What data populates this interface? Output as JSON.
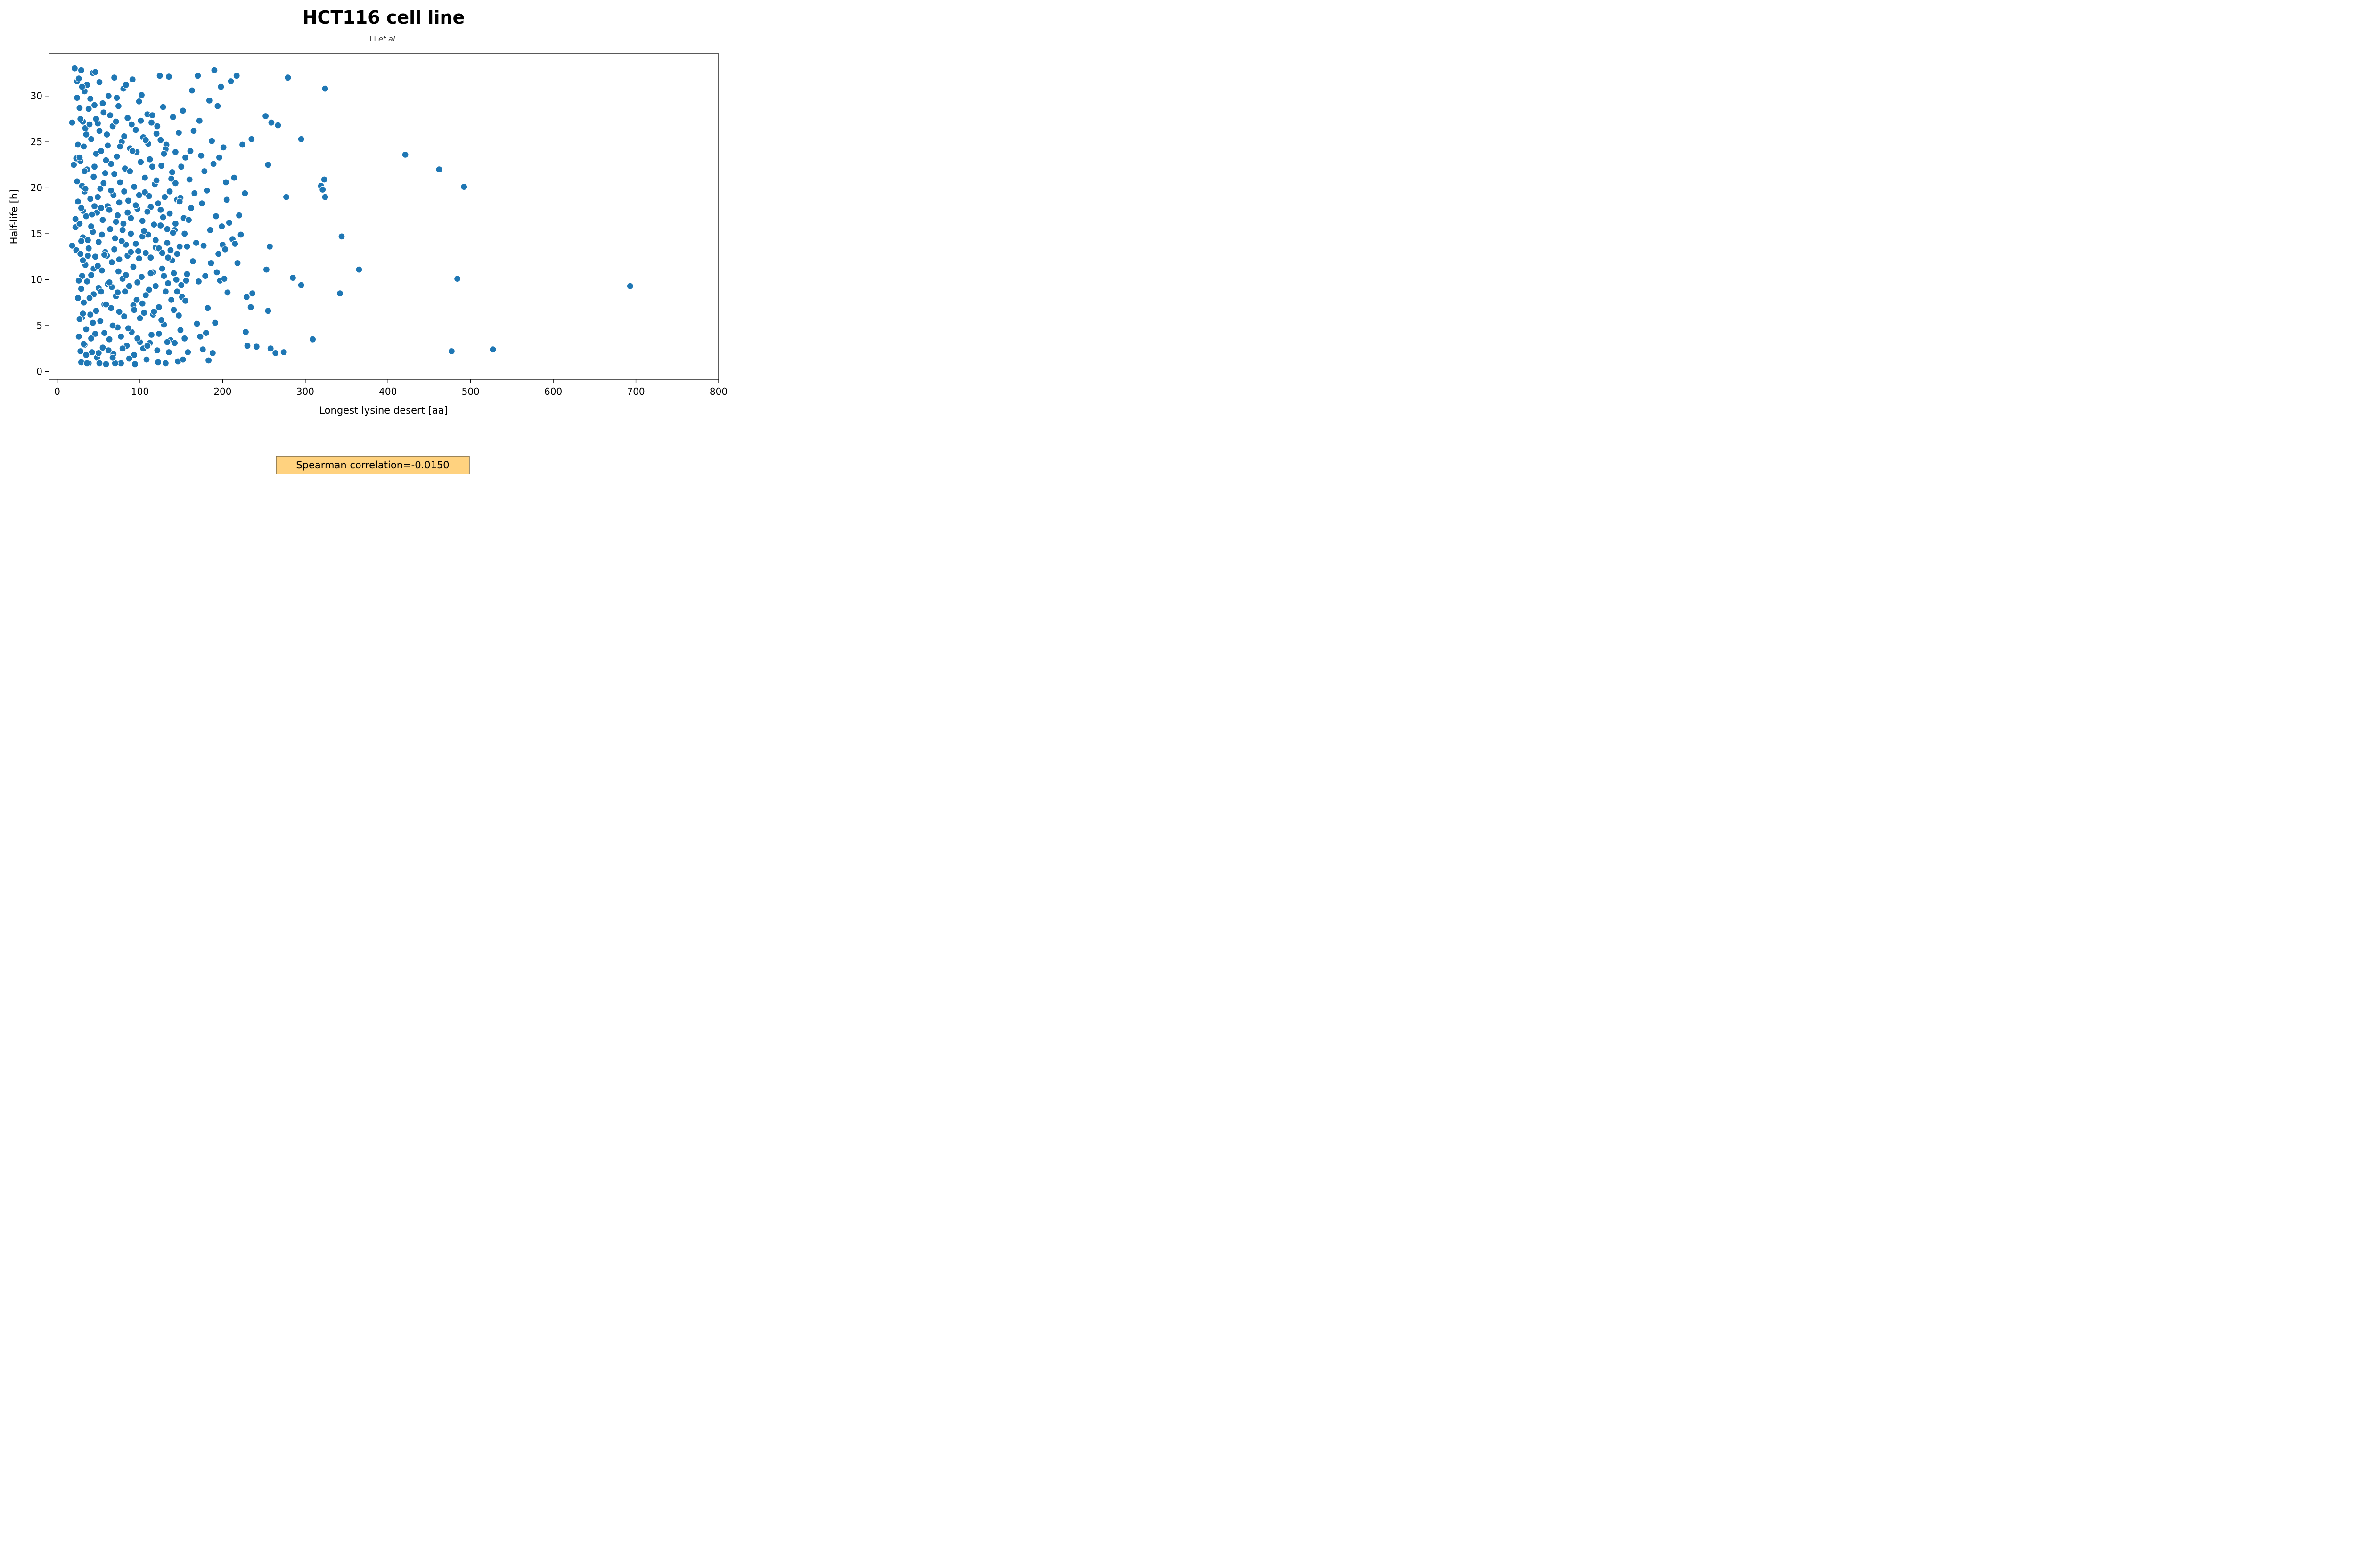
{
  "chart_data": {
    "type": "scatter",
    "title": "HCT116 cell line",
    "subtitle_prefix": "Li",
    "subtitle_italic": "et al.",
    "xlabel": "Longest lysine desert [aa]",
    "ylabel": "Half-life [h]",
    "xlim": [
      -10,
      800
    ],
    "ylim": [
      -0.85,
      34.6
    ],
    "xticks": [
      0,
      100,
      200,
      300,
      400,
      500,
      600,
      700,
      800
    ],
    "yticks": [
      0,
      5,
      10,
      15,
      20,
      25,
      30
    ],
    "grid": false,
    "legend": "none",
    "marker_color": "#1f77b4",
    "annotation": "Spearman correlation=-0.0150",
    "annotation_bg": "#ffd27f",
    "points": [
      [
        18,
        13.7
      ],
      [
        18,
        27.1
      ],
      [
        20,
        22.5
      ],
      [
        21,
        33.0
      ],
      [
        22,
        15.7
      ],
      [
        23,
        13.2
      ],
      [
        23,
        23.2
      ],
      [
        24,
        31.6
      ],
      [
        24,
        29.8
      ],
      [
        25,
        8.0
      ],
      [
        25,
        24.7
      ],
      [
        25,
        18.5
      ],
      [
        26,
        31.9
      ],
      [
        26,
        3.8
      ],
      [
        27,
        16.1
      ],
      [
        27,
        28.7
      ],
      [
        28,
        12.8
      ],
      [
        28,
        22.9
      ],
      [
        28,
        2.2
      ],
      [
        29,
        9.0
      ],
      [
        29,
        1.0
      ],
      [
        29,
        32.8
      ],
      [
        30,
        20.2
      ],
      [
        30,
        10.4
      ],
      [
        30,
        5.9
      ],
      [
        31,
        17.5
      ],
      [
        31,
        27.2
      ],
      [
        31,
        14.6
      ],
      [
        32,
        24.5
      ],
      [
        32,
        7.5
      ],
      [
        33,
        30.5
      ],
      [
        33,
        19.6
      ],
      [
        33,
        2.9
      ],
      [
        34,
        11.6
      ],
      [
        34,
        26.5
      ],
      [
        35,
        16.9
      ],
      [
        35,
        4.6
      ],
      [
        36,
        22.0
      ],
      [
        36,
        9.8
      ],
      [
        36,
        31.2
      ],
      [
        38,
        13.4
      ],
      [
        38,
        0.9
      ],
      [
        38,
        28.6
      ],
      [
        40,
        18.8
      ],
      [
        40,
        6.2
      ],
      [
        41,
        25.3
      ],
      [
        41,
        10.5
      ],
      [
        42,
        2.1
      ],
      [
        43,
        15.2
      ],
      [
        43,
        32.5
      ],
      [
        44,
        21.2
      ],
      [
        44,
        8.4
      ],
      [
        45,
        29.0
      ],
      [
        46,
        12.5
      ],
      [
        46,
        4.1
      ],
      [
        47,
        23.7
      ],
      [
        48,
        17.3
      ],
      [
        48,
        1.5
      ],
      [
        49,
        27.0
      ],
      [
        50,
        9.1
      ],
      [
        50,
        14.1
      ],
      [
        51,
        31.5
      ],
      [
        52,
        19.9
      ],
      [
        52,
        5.5
      ],
      [
        53,
        24.0
      ],
      [
        54,
        11.0
      ],
      [
        55,
        16.5
      ],
      [
        55,
        2.6
      ],
      [
        56,
        28.2
      ],
      [
        57,
        7.3
      ],
      [
        58,
        21.6
      ],
      [
        58,
        13.0
      ],
      [
        59,
        0.8
      ],
      [
        60,
        25.8
      ],
      [
        61,
        18.0
      ],
      [
        61,
        9.5
      ],
      [
        62,
        30.0
      ],
      [
        63,
        3.5
      ],
      [
        64,
        15.5
      ],
      [
        65,
        22.6
      ],
      [
        65,
        6.9
      ],
      [
        66,
        11.9
      ],
      [
        67,
        26.7
      ],
      [
        68,
        19.2
      ],
      [
        68,
        1.9
      ],
      [
        69,
        32.0
      ],
      [
        70,
        14.5
      ],
      [
        71,
        8.2
      ],
      [
        72,
        23.4
      ],
      [
        73,
        17.0
      ],
      [
        73,
        4.8
      ],
      [
        74,
        28.9
      ],
      [
        75,
        12.2
      ],
      [
        76,
        20.6
      ],
      [
        77,
        0.9
      ],
      [
        78,
        25.0
      ],
      [
        79,
        10.1
      ],
      [
        80,
        16.1
      ],
      [
        80,
        30.8
      ],
      [
        81,
        6.0
      ],
      [
        82,
        22.1
      ],
      [
        83,
        13.8
      ],
      [
        84,
        2.8
      ],
      [
        85,
        27.6
      ],
      [
        86,
        18.6
      ],
      [
        87,
        9.3
      ],
      [
        88,
        24.3
      ],
      [
        89,
        15.0
      ],
      [
        90,
        4.3
      ],
      [
        91,
        31.8
      ],
      [
        92,
        11.4
      ],
      [
        93,
        20.1
      ],
      [
        94,
        0.8
      ],
      [
        95,
        26.3
      ],
      [
        96,
        7.8
      ],
      [
        97,
        17.7
      ],
      [
        98,
        13.1
      ],
      [
        99,
        29.4
      ],
      [
        100,
        3.2
      ],
      [
        101,
        22.8
      ],
      [
        102,
        10.3
      ],
      [
        103,
        16.4
      ],
      [
        104,
        25.5
      ],
      [
        105,
        6.4
      ],
      [
        106,
        19.5
      ],
      [
        107,
        12.9
      ],
      [
        108,
        1.3
      ],
      [
        109,
        28.0
      ],
      [
        110,
        14.9
      ],
      [
        111,
        8.9
      ],
      [
        112,
        23.1
      ],
      [
        113,
        17.9
      ],
      [
        114,
        4.0
      ],
      [
        115,
        27.9
      ],
      [
        116,
        10.8
      ],
      [
        118,
        20.4
      ],
      [
        119,
        13.5
      ],
      [
        120,
        25.9
      ],
      [
        121,
        2.3
      ],
      [
        122,
        18.3
      ],
      [
        123,
        7.0
      ],
      [
        124,
        32.2
      ],
      [
        125,
        15.9
      ],
      [
        126,
        22.4
      ],
      [
        127,
        11.2
      ],
      [
        128,
        28.8
      ],
      [
        129,
        5.1
      ],
      [
        130,
        19.0
      ],
      [
        131,
        0.9
      ],
      [
        132,
        24.7
      ],
      [
        133,
        14.0
      ],
      [
        134,
        9.6
      ],
      [
        135,
        32.1
      ],
      [
        136,
        17.2
      ],
      [
        137,
        3.4
      ],
      [
        138,
        21.0
      ],
      [
        139,
        12.1
      ],
      [
        140,
        27.7
      ],
      [
        141,
        6.7
      ],
      [
        142,
        15.4
      ],
      [
        143,
        23.9
      ],
      [
        144,
        10.0
      ],
      [
        145,
        18.7
      ],
      [
        146,
        1.1
      ],
      [
        147,
        26.0
      ],
      [
        148,
        13.6
      ],
      [
        149,
        4.5
      ],
      [
        150,
        22.3
      ],
      [
        151,
        8.1
      ],
      [
        152,
        28.4
      ],
      [
        153,
        16.7
      ],
      [
        154,
        3.6
      ],
      [
        155,
        23.3
      ],
      [
        156,
        9.9
      ],
      [
        157,
        13.6
      ],
      [
        158,
        2.1
      ],
      [
        159,
        16.5
      ],
      [
        160,
        20.9
      ],
      [
        161,
        24.0
      ],
      [
        162,
        17.8
      ],
      [
        163,
        30.6
      ],
      [
        164,
        12.0
      ],
      [
        165,
        26.2
      ],
      [
        166,
        19.4
      ],
      [
        168,
        14.0
      ],
      [
        169,
        5.2
      ],
      [
        170,
        32.2
      ],
      [
        171,
        9.8
      ],
      [
        172,
        27.3
      ],
      [
        173,
        3.8
      ],
      [
        174,
        23.5
      ],
      [
        175,
        18.3
      ],
      [
        176,
        2.4
      ],
      [
        177,
        13.7
      ],
      [
        178,
        21.8
      ],
      [
        179,
        10.4
      ],
      [
        180,
        4.2
      ],
      [
        181,
        19.7
      ],
      [
        182,
        6.9
      ],
      [
        183,
        1.2
      ],
      [
        184,
        29.5
      ],
      [
        185,
        15.4
      ],
      [
        186,
        11.8
      ],
      [
        187,
        25.1
      ],
      [
        188,
        2.0
      ],
      [
        189,
        22.6
      ],
      [
        190,
        32.8
      ],
      [
        191,
        5.3
      ],
      [
        192,
        16.9
      ],
      [
        193,
        10.8
      ],
      [
        194,
        28.9
      ],
      [
        195,
        12.8
      ],
      [
        196,
        23.3
      ],
      [
        197,
        9.9
      ],
      [
        198,
        31.0
      ],
      [
        199,
        15.8
      ],
      [
        200,
        13.8
      ],
      [
        201,
        24.4
      ],
      [
        202,
        10.1
      ],
      [
        203,
        13.3
      ],
      [
        204,
        20.6
      ],
      [
        205,
        18.7
      ],
      [
        206,
        8.6
      ],
      [
        208,
        16.2
      ],
      [
        210,
        31.6
      ],
      [
        212,
        14.4
      ],
      [
        214,
        21.1
      ],
      [
        215,
        13.9
      ],
      [
        217,
        32.2
      ],
      [
        218,
        11.8
      ],
      [
        220,
        17.0
      ],
      [
        222,
        14.9
      ],
      [
        224,
        24.7
      ],
      [
        227,
        19.4
      ],
      [
        228,
        4.3
      ],
      [
        229,
        8.1
      ],
      [
        230,
        2.8
      ],
      [
        234,
        7.0
      ],
      [
        235,
        25.3
      ],
      [
        236,
        8.5
      ],
      [
        241,
        2.7
      ],
      [
        252,
        27.8
      ],
      [
        253,
        11.1
      ],
      [
        255,
        6.6
      ],
      [
        255,
        22.5
      ],
      [
        257,
        13.6
      ],
      [
        258,
        2.5
      ],
      [
        259,
        27.1
      ],
      [
        264,
        2.0
      ],
      [
        267,
        26.8
      ],
      [
        274,
        2.1
      ],
      [
        277,
        19.0
      ],
      [
        279,
        32.0
      ],
      [
        285,
        10.2
      ],
      [
        295,
        9.4
      ],
      [
        295,
        25.3
      ],
      [
        309,
        3.5
      ],
      [
        319,
        20.2
      ],
      [
        321,
        19.8
      ],
      [
        323,
        20.9
      ],
      [
        324,
        30.8
      ],
      [
        324,
        19.0
      ],
      [
        342,
        8.5
      ],
      [
        344,
        14.7
      ],
      [
        365,
        11.1
      ],
      [
        421,
        23.6
      ],
      [
        462,
        22.0
      ],
      [
        477,
        2.2
      ],
      [
        484,
        10.1
      ],
      [
        492,
        20.1
      ],
      [
        527,
        2.4
      ],
      [
        693,
        9.3
      ],
      [
        22,
        16.6
      ],
      [
        24,
        20.7
      ],
      [
        26,
        9.9
      ],
      [
        27,
        5.7
      ],
      [
        28,
        27.5
      ],
      [
        29,
        17.8
      ],
      [
        30,
        31.0
      ],
      [
        31,
        12.1
      ],
      [
        32,
        3.0
      ],
      [
        34,
        19.9
      ],
      [
        35,
        25.8
      ],
      [
        36,
        0.9
      ],
      [
        37,
        14.3
      ],
      [
        39,
        8.0
      ],
      [
        40,
        29.7
      ],
      [
        41,
        3.6
      ],
      [
        42,
        17.1
      ],
      [
        44,
        11.2
      ],
      [
        45,
        22.3
      ],
      [
        46,
        32.6
      ],
      [
        47,
        6.6
      ],
      [
        49,
        19.0
      ],
      [
        50,
        2.0
      ],
      [
        51,
        26.2
      ],
      [
        53,
        8.7
      ],
      [
        54,
        14.9
      ],
      [
        56,
        20.5
      ],
      [
        57,
        4.2
      ],
      [
        59,
        23.0
      ],
      [
        60,
        12.6
      ],
      [
        62,
        2.3
      ],
      [
        63,
        17.6
      ],
      [
        64,
        27.9
      ],
      [
        66,
        9.2
      ],
      [
        67,
        5.0
      ],
      [
        69,
        21.5
      ],
      [
        70,
        0.9
      ],
      [
        71,
        16.3
      ],
      [
        72,
        29.8
      ],
      [
        74,
        10.9
      ],
      [
        75,
        6.5
      ],
      [
        76,
        24.5
      ],
      [
        78,
        14.2
      ],
      [
        79,
        2.5
      ],
      [
        81,
        19.6
      ],
      [
        82,
        8.7
      ],
      [
        83,
        31.2
      ],
      [
        85,
        12.6
      ],
      [
        86,
        4.7
      ],
      [
        88,
        21.8
      ],
      [
        89,
        16.7
      ],
      [
        90,
        26.9
      ],
      [
        92,
        7.2
      ],
      [
        93,
        1.8
      ],
      [
        95,
        13.9
      ],
      [
        96,
        23.9
      ],
      [
        97,
        9.7
      ],
      [
        99,
        19.2
      ],
      [
        100,
        5.8
      ],
      [
        102,
        30.1
      ],
      [
        103,
        14.7
      ],
      [
        104,
        2.5
      ],
      [
        106,
        21.1
      ],
      [
        107,
        8.3
      ],
      [
        109,
        17.4
      ],
      [
        110,
        24.8
      ],
      [
        112,
        3.1
      ],
      [
        113,
        12.4
      ],
      [
        114,
        27.1
      ],
      [
        116,
        6.2
      ],
      [
        117,
        16.0
      ],
      [
        119,
        9.3
      ],
      [
        120,
        20.8
      ],
      [
        122,
        1.0
      ],
      [
        123,
        13.4
      ],
      [
        125,
        25.2
      ],
      [
        126,
        5.6
      ],
      [
        128,
        16.8
      ],
      [
        129,
        10.4
      ],
      [
        131,
        24.2
      ],
      [
        133,
        3.2
      ],
      [
        134,
        12.4
      ],
      [
        136,
        19.6
      ],
      [
        138,
        7.8
      ],
      [
        140,
        15.1
      ],
      [
        142,
        3.1
      ],
      [
        143,
        20.5
      ],
      [
        145,
        12.8
      ],
      [
        147,
        6.1
      ],
      [
        149,
        18.9
      ],
      [
        150,
        9.4
      ],
      [
        152,
        1.3
      ],
      [
        154,
        15.0
      ],
      [
        155,
        7.7
      ],
      [
        157,
        10.6
      ],
      [
        27,
        23.3
      ],
      [
        29,
        14.2
      ],
      [
        31,
        6.3
      ],
      [
        33,
        21.8
      ],
      [
        35,
        1.8
      ],
      [
        37,
        12.6
      ],
      [
        39,
        26.9
      ],
      [
        41,
        15.8
      ],
      [
        43,
        5.3
      ],
      [
        45,
        18.0
      ],
      [
        47,
        27.5
      ],
      [
        49,
        11.5
      ],
      [
        51,
        0.9
      ],
      [
        53,
        17.8
      ],
      [
        55,
        29.2
      ],
      [
        57,
        12.7
      ],
      [
        59,
        7.3
      ],
      [
        61,
        24.6
      ],
      [
        63,
        9.7
      ],
      [
        65,
        19.7
      ],
      [
        67,
        1.5
      ],
      [
        69,
        13.3
      ],
      [
        71,
        27.2
      ],
      [
        73,
        8.6
      ],
      [
        75,
        18.4
      ],
      [
        77,
        3.8
      ],
      [
        79,
        15.4
      ],
      [
        81,
        25.6
      ],
      [
        83,
        10.5
      ],
      [
        85,
        17.3
      ],
      [
        87,
        1.4
      ],
      [
        89,
        13.0
      ],
      [
        91,
        24.0
      ],
      [
        93,
        6.7
      ],
      [
        95,
        18.1
      ],
      [
        97,
        3.6
      ],
      [
        99,
        12.3
      ],
      [
        101,
        27.3
      ],
      [
        103,
        7.4
      ],
      [
        105,
        15.3
      ],
      [
        107,
        25.2
      ],
      [
        109,
        2.8
      ],
      [
        111,
        19.1
      ],
      [
        113,
        10.7
      ],
      [
        115,
        22.3
      ],
      [
        117,
        6.5
      ],
      [
        119,
        14.3
      ],
      [
        121,
        26.7
      ],
      [
        123,
        4.1
      ],
      [
        125,
        17.6
      ],
      [
        127,
        12.9
      ],
      [
        129,
        23.7
      ],
      [
        131,
        8.7
      ],
      [
        133,
        15.5
      ],
      [
        135,
        2.1
      ],
      [
        137,
        13.2
      ],
      [
        139,
        21.7
      ],
      [
        141,
        10.7
      ],
      [
        143,
        16.1
      ],
      [
        145,
        8.7
      ],
      [
        148,
        18.5
      ]
    ]
  }
}
